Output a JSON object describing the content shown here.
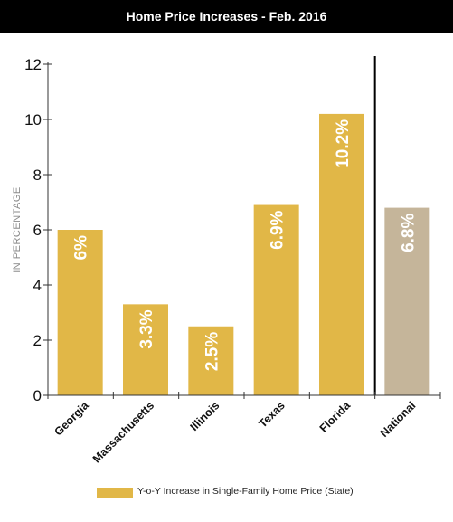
{
  "title": "Home Price Increases - Feb. 2016",
  "chart_data": {
    "type": "bar",
    "title": "Home Price Increases - Feb. 2016",
    "ylabel": "IN PERCENTAGE",
    "xlabel": "",
    "ylim": [
      0,
      12
    ],
    "yticks": [
      0,
      2,
      4,
      6,
      8,
      10,
      12
    ],
    "grid": false,
    "categories": [
      "Georgia",
      "Massachusetts",
      "Illinois",
      "Texas",
      "Florida",
      "National"
    ],
    "values": [
      6,
      3.3,
      2.5,
      6.9,
      10.2,
      6.8
    ],
    "data_labels": [
      "6%",
      "3.3%",
      "2.5%",
      "6.9%",
      "10.2%",
      "6.8%"
    ],
    "bar_colors": [
      "#e1b747",
      "#e1b747",
      "#e1b747",
      "#e1b747",
      "#e1b747",
      "#c5b59a"
    ],
    "separator_before": "National",
    "legend": {
      "position": "bottom",
      "entries": [
        {
          "label": "Y-o-Y Increase in Single-Family Home Price (State)",
          "color": "#e1b747"
        }
      ]
    }
  }
}
